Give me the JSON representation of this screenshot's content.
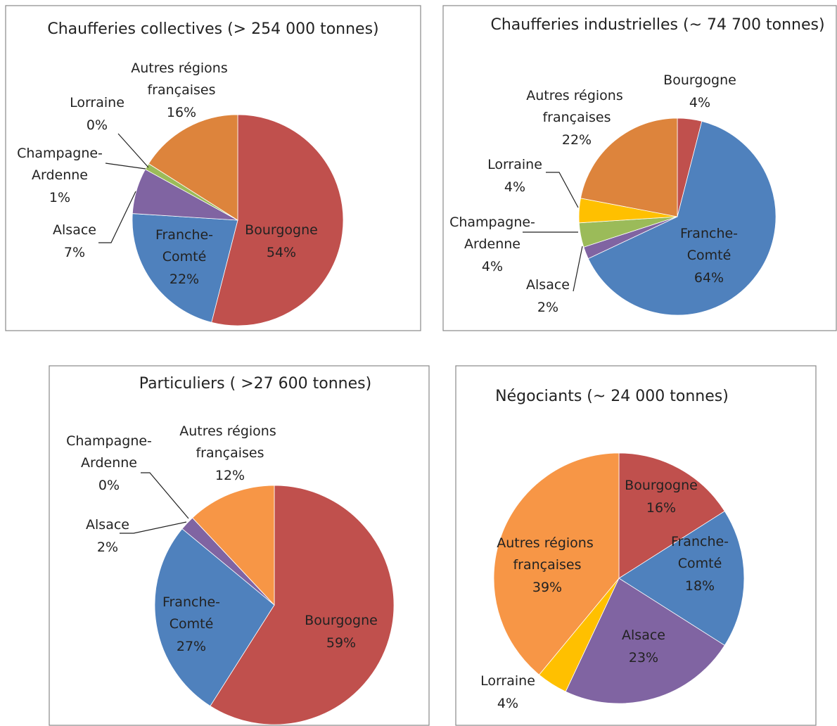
{
  "chart_data": [
    {
      "type": "pie",
      "title": "Chaufferies collectives  (> 254 000 tonnes)",
      "categories": [
        "Bourgogne",
        "Franche-Comté",
        "Alsace",
        "Champagne-Ardenne",
        "Lorraine",
        "Autres régions françaises"
      ],
      "values": [
        54,
        22,
        7,
        1,
        0,
        16
      ],
      "value_labels": [
        "54%",
        "22%",
        "7%",
        "1%",
        "0%",
        "16%"
      ],
      "colors": [
        "#c0504d",
        "#4f81bd",
        "#8064a2",
        "#9bbb59",
        "#ffc000",
        "#dd843c"
      ]
    },
    {
      "type": "pie",
      "title": "Chaufferies industrielles (~ 74 700 tonnes)",
      "categories": [
        "Bourgogne",
        "Franche-Comté",
        "Alsace",
        "Champagne-Ardenne",
        "Lorraine",
        "Autres régions françaises"
      ],
      "values": [
        4,
        64,
        2,
        4,
        4,
        22
      ],
      "value_labels": [
        "4%",
        "64%",
        "2%",
        "4%",
        "4%",
        "22%"
      ],
      "colors": [
        "#c0504d",
        "#4f81bd",
        "#8064a2",
        "#9bbb59",
        "#ffc000",
        "#dd843c"
      ]
    },
    {
      "type": "pie",
      "title": "Particuliers ( >27 600 tonnes)",
      "categories": [
        "Bourgogne",
        "Franche-Comté",
        "Alsace",
        "Champagne-Ardenne",
        "Autres régions françaises"
      ],
      "values": [
        59,
        27,
        2,
        0,
        12
      ],
      "value_labels": [
        "59%",
        "27%",
        "2%",
        "0%",
        "12%"
      ],
      "colors": [
        "#c0504d",
        "#4f81bd",
        "#8064a2",
        "#9bbb59",
        "#f79646"
      ]
    },
    {
      "type": "pie",
      "title": "Négociants  (~ 24 000 tonnes)",
      "categories": [
        "Bourgogne",
        "Franche-Comté",
        "Alsace",
        "Lorraine",
        "Autres régions françaises"
      ],
      "values": [
        16,
        18,
        23,
        4,
        39
      ],
      "value_labels": [
        "16%",
        "18%",
        "23%",
        "4%",
        "39%"
      ],
      "colors": [
        "#c0504d",
        "#4f81bd",
        "#8064a2",
        "#ffc000",
        "#f79646"
      ]
    }
  ]
}
